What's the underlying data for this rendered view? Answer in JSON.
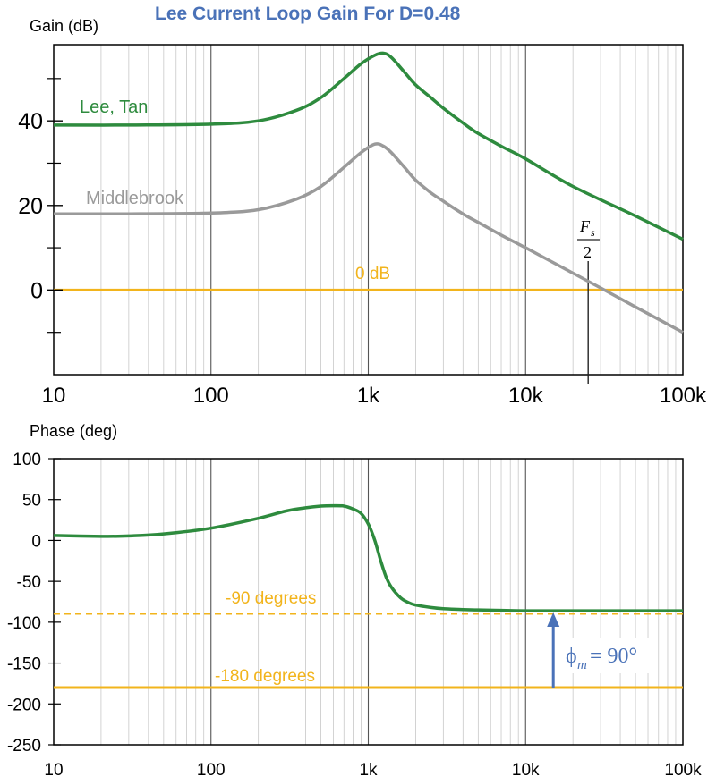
{
  "title": "Lee Current Loop Gain For D=0.48",
  "colors": {
    "title": "#4a72b8",
    "lee": "#2e8b3e",
    "middlebrook": "#9a9a9a",
    "reference": "#f2b41c",
    "margin_arrow": "#4a72b8",
    "fs_marker": "#222222"
  },
  "chart_data": [
    {
      "type": "line",
      "title": "Lee Current Loop Gain For D=0.48",
      "ylabel": "Gain (dB)",
      "xscale": "log",
      "xlim": [
        10,
        100000
      ],
      "ylim": [
        -20,
        58
      ],
      "grid": true,
      "x_tick_labels": [
        "10",
        "100",
        "1k",
        "10k",
        "100k"
      ],
      "y_tick_labels": [
        "40",
        "20",
        "0"
      ],
      "y_minor_ticks": [
        -10,
        10,
        30,
        50
      ],
      "series": [
        {
          "name": "Lee, Tan",
          "x": [
            10,
            30,
            100,
            200,
            350,
            500,
            700,
            900,
            1100,
            1250,
            1400,
            1700,
            2000,
            2500,
            3000,
            4000,
            5000,
            7000,
            10000,
            20000,
            50000,
            100000
          ],
          "y": [
            39,
            39,
            39.2,
            40,
            42.5,
            45.5,
            50,
            53.5,
            55.5,
            56,
            55,
            51.5,
            48.5,
            45.5,
            43,
            39.5,
            37,
            34,
            31,
            24.5,
            17.5,
            12
          ]
        },
        {
          "name": "Middlebrook",
          "x": [
            10,
            30,
            100,
            200,
            350,
            500,
            700,
            900,
            1100,
            1250,
            1400,
            1700,
            2000,
            2500,
            3000,
            4000,
            5000,
            7000,
            10000,
            20000,
            30000,
            50000,
            100000
          ],
          "y": [
            18,
            18,
            18.2,
            19,
            21.5,
            24.5,
            29,
            32.5,
            34.5,
            34,
            32.5,
            29,
            26,
            23,
            21,
            18,
            16,
            13,
            10,
            4,
            0.5,
            -4,
            -10
          ]
        }
      ],
      "annotations": [
        {
          "text": "0 dB",
          "y": 0
        },
        {
          "text": "Fs/2",
          "numerator": "F",
          "subscript": "s",
          "denominator": "2",
          "x": 25000
        }
      ]
    },
    {
      "type": "line",
      "ylabel": "Phase (deg)",
      "xscale": "log",
      "xlim": [
        10,
        100000
      ],
      "ylim": [
        -250,
        100
      ],
      "grid": true,
      "x_tick_labels": [
        "10",
        "100",
        "1k",
        "10k",
        "100k"
      ],
      "y_ticks": [
        100,
        50,
        0,
        -50,
        -100,
        -150,
        -200,
        -250
      ],
      "y_tick_labels": [
        "100",
        "50",
        "0",
        "-50",
        "-100",
        "-150",
        "-200",
        "-250"
      ],
      "series": [
        {
          "name": "Lee, Tan",
          "x": [
            10,
            20,
            30,
            50,
            100,
            200,
            300,
            400,
            500,
            600,
            700,
            800,
            900,
            1000,
            1100,
            1200,
            1300,
            1400,
            1600,
            1800,
            2000,
            2500,
            3000,
            4000,
            5000,
            7000,
            10000,
            20000,
            50000,
            100000
          ],
          "y": [
            6,
            5,
            5.5,
            8,
            15,
            27,
            36,
            40,
            42,
            42.5,
            42,
            38.5,
            33,
            20,
            0,
            -25,
            -45,
            -57,
            -70,
            -76,
            -79,
            -82,
            -83.5,
            -84.5,
            -85,
            -85.5,
            -86,
            -86,
            -86,
            -86
          ]
        }
      ],
      "reference_lines": [
        {
          "text": "-90 degrees",
          "y": -90,
          "style": "dashed"
        },
        {
          "text": "-180 degrees",
          "y": -180,
          "style": "solid"
        }
      ],
      "annotations": [
        {
          "text": "ϕm = 90°",
          "symbol": "ϕ",
          "subscript": "m",
          "value": "= 90°",
          "x": 15000,
          "from_y": -180,
          "to_y": -86
        }
      ]
    }
  ]
}
